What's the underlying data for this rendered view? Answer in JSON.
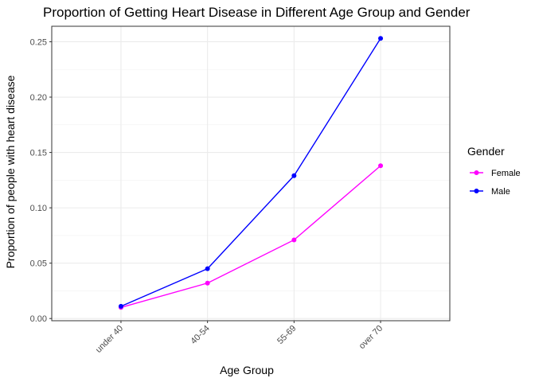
{
  "chart_data": {
    "type": "line",
    "title": "Proportion of Getting Heart Disease in Different Age Group and Gender",
    "xlabel": "Age Group",
    "ylabel": "Proportion of people with heart disease",
    "categories": [
      "under 40",
      "40-54",
      "55-69",
      "over 70"
    ],
    "y_ticks": [
      0.0,
      0.05,
      0.1,
      0.15,
      0.2,
      0.25
    ],
    "y_tick_labels": [
      "0.00",
      "0.05",
      "0.10",
      "0.15",
      "0.20",
      "0.25"
    ],
    "ylim": [
      -0.002,
      0.264
    ],
    "grid": true,
    "legend": {
      "title": "Gender",
      "placement": "right"
    },
    "series": [
      {
        "name": "Female",
        "color": "#ff00ff",
        "values": [
          0.01,
          0.032,
          0.071,
          0.138
        ]
      },
      {
        "name": "Male",
        "color": "#0000ff",
        "values": [
          0.011,
          0.045,
          0.129,
          0.253
        ]
      }
    ]
  }
}
